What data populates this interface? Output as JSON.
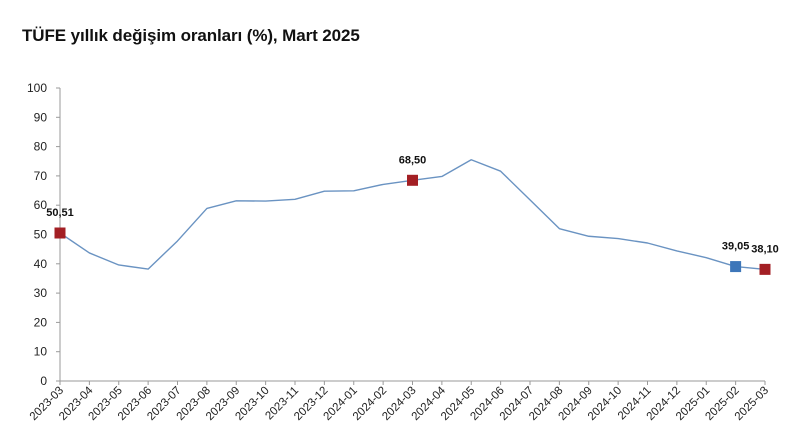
{
  "chart_data": {
    "type": "line",
    "title": "TÜFE yıllık değişim oranları (%), Mart 2025",
    "xlabel": "",
    "ylabel": "",
    "ylim": [
      0,
      100
    ],
    "yticks": [
      0,
      10,
      20,
      30,
      40,
      50,
      60,
      70,
      80,
      90,
      100
    ],
    "grid": false,
    "categories": [
      "2023-03",
      "2023-04",
      "2023-05",
      "2023-06",
      "2023-07",
      "2023-08",
      "2023-09",
      "2023-10",
      "2023-11",
      "2023-12",
      "2024-01",
      "2024-02",
      "2024-03",
      "2024-04",
      "2024-05",
      "2024-06",
      "2024-07",
      "2024-08",
      "2024-09",
      "2024-10",
      "2024-11",
      "2024-12",
      "2025-01",
      "2025-02",
      "2025-03"
    ],
    "series": [
      {
        "values": [
          50.51,
          43.7,
          39.6,
          38.2,
          47.8,
          58.9,
          61.5,
          61.4,
          62.0,
          64.8,
          64.9,
          67.1,
          68.5,
          69.8,
          75.5,
          71.6,
          61.8,
          52.0,
          49.4,
          48.6,
          47.1,
          44.4,
          42.1,
          39.05,
          38.1
        ],
        "color": "#6a93c2"
      }
    ],
    "markers": [
      {
        "index": 0,
        "label": "50,51",
        "color": "#a31f24"
      },
      {
        "index": 12,
        "label": "68,50",
        "color": "#a31f24"
      },
      {
        "index": 23,
        "label": "39,05",
        "color": "#3d76b9"
      },
      {
        "index": 24,
        "label": "38,10",
        "color": "#a31f24"
      }
    ]
  }
}
